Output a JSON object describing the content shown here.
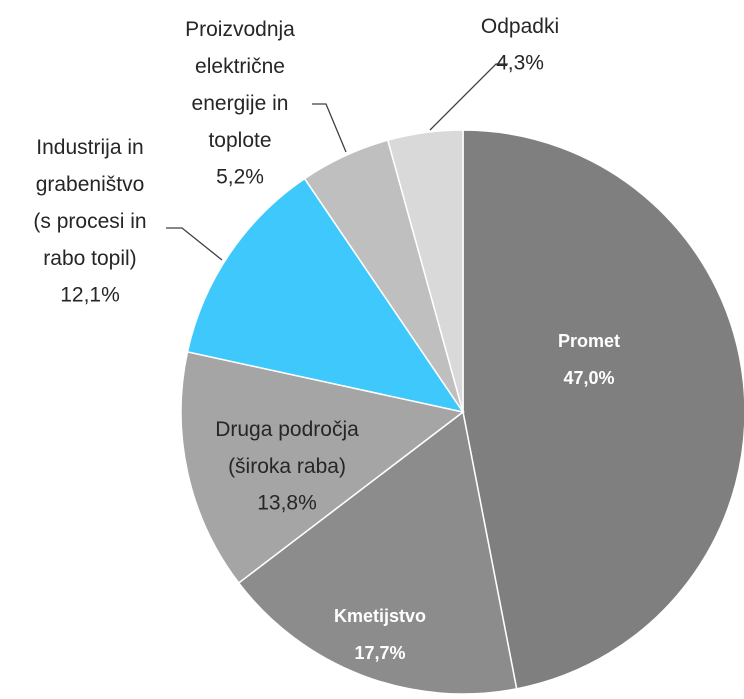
{
  "chart_data": {
    "type": "pie",
    "categories": [
      "Promet",
      "Kmetijstvo",
      "Druga področja (široka raba)",
      "Industrija in grabeništvo (s procesi in rabo topil)",
      "Proizvodnja električne energije in toplote",
      "Odpadki"
    ],
    "values": [
      47.0,
      17.7,
      13.8,
      12.1,
      5.2,
      4.3
    ],
    "value_labels": [
      "47,0%",
      "17,7%",
      "13,8%",
      "12,1%",
      "5,2%",
      "4,3%"
    ],
    "colors": [
      "#7f7f7f",
      "#8c8c8c",
      "#a5a5a5",
      "#3fc8fb",
      "#bfbfbf",
      "#d9d9d9"
    ]
  }
}
